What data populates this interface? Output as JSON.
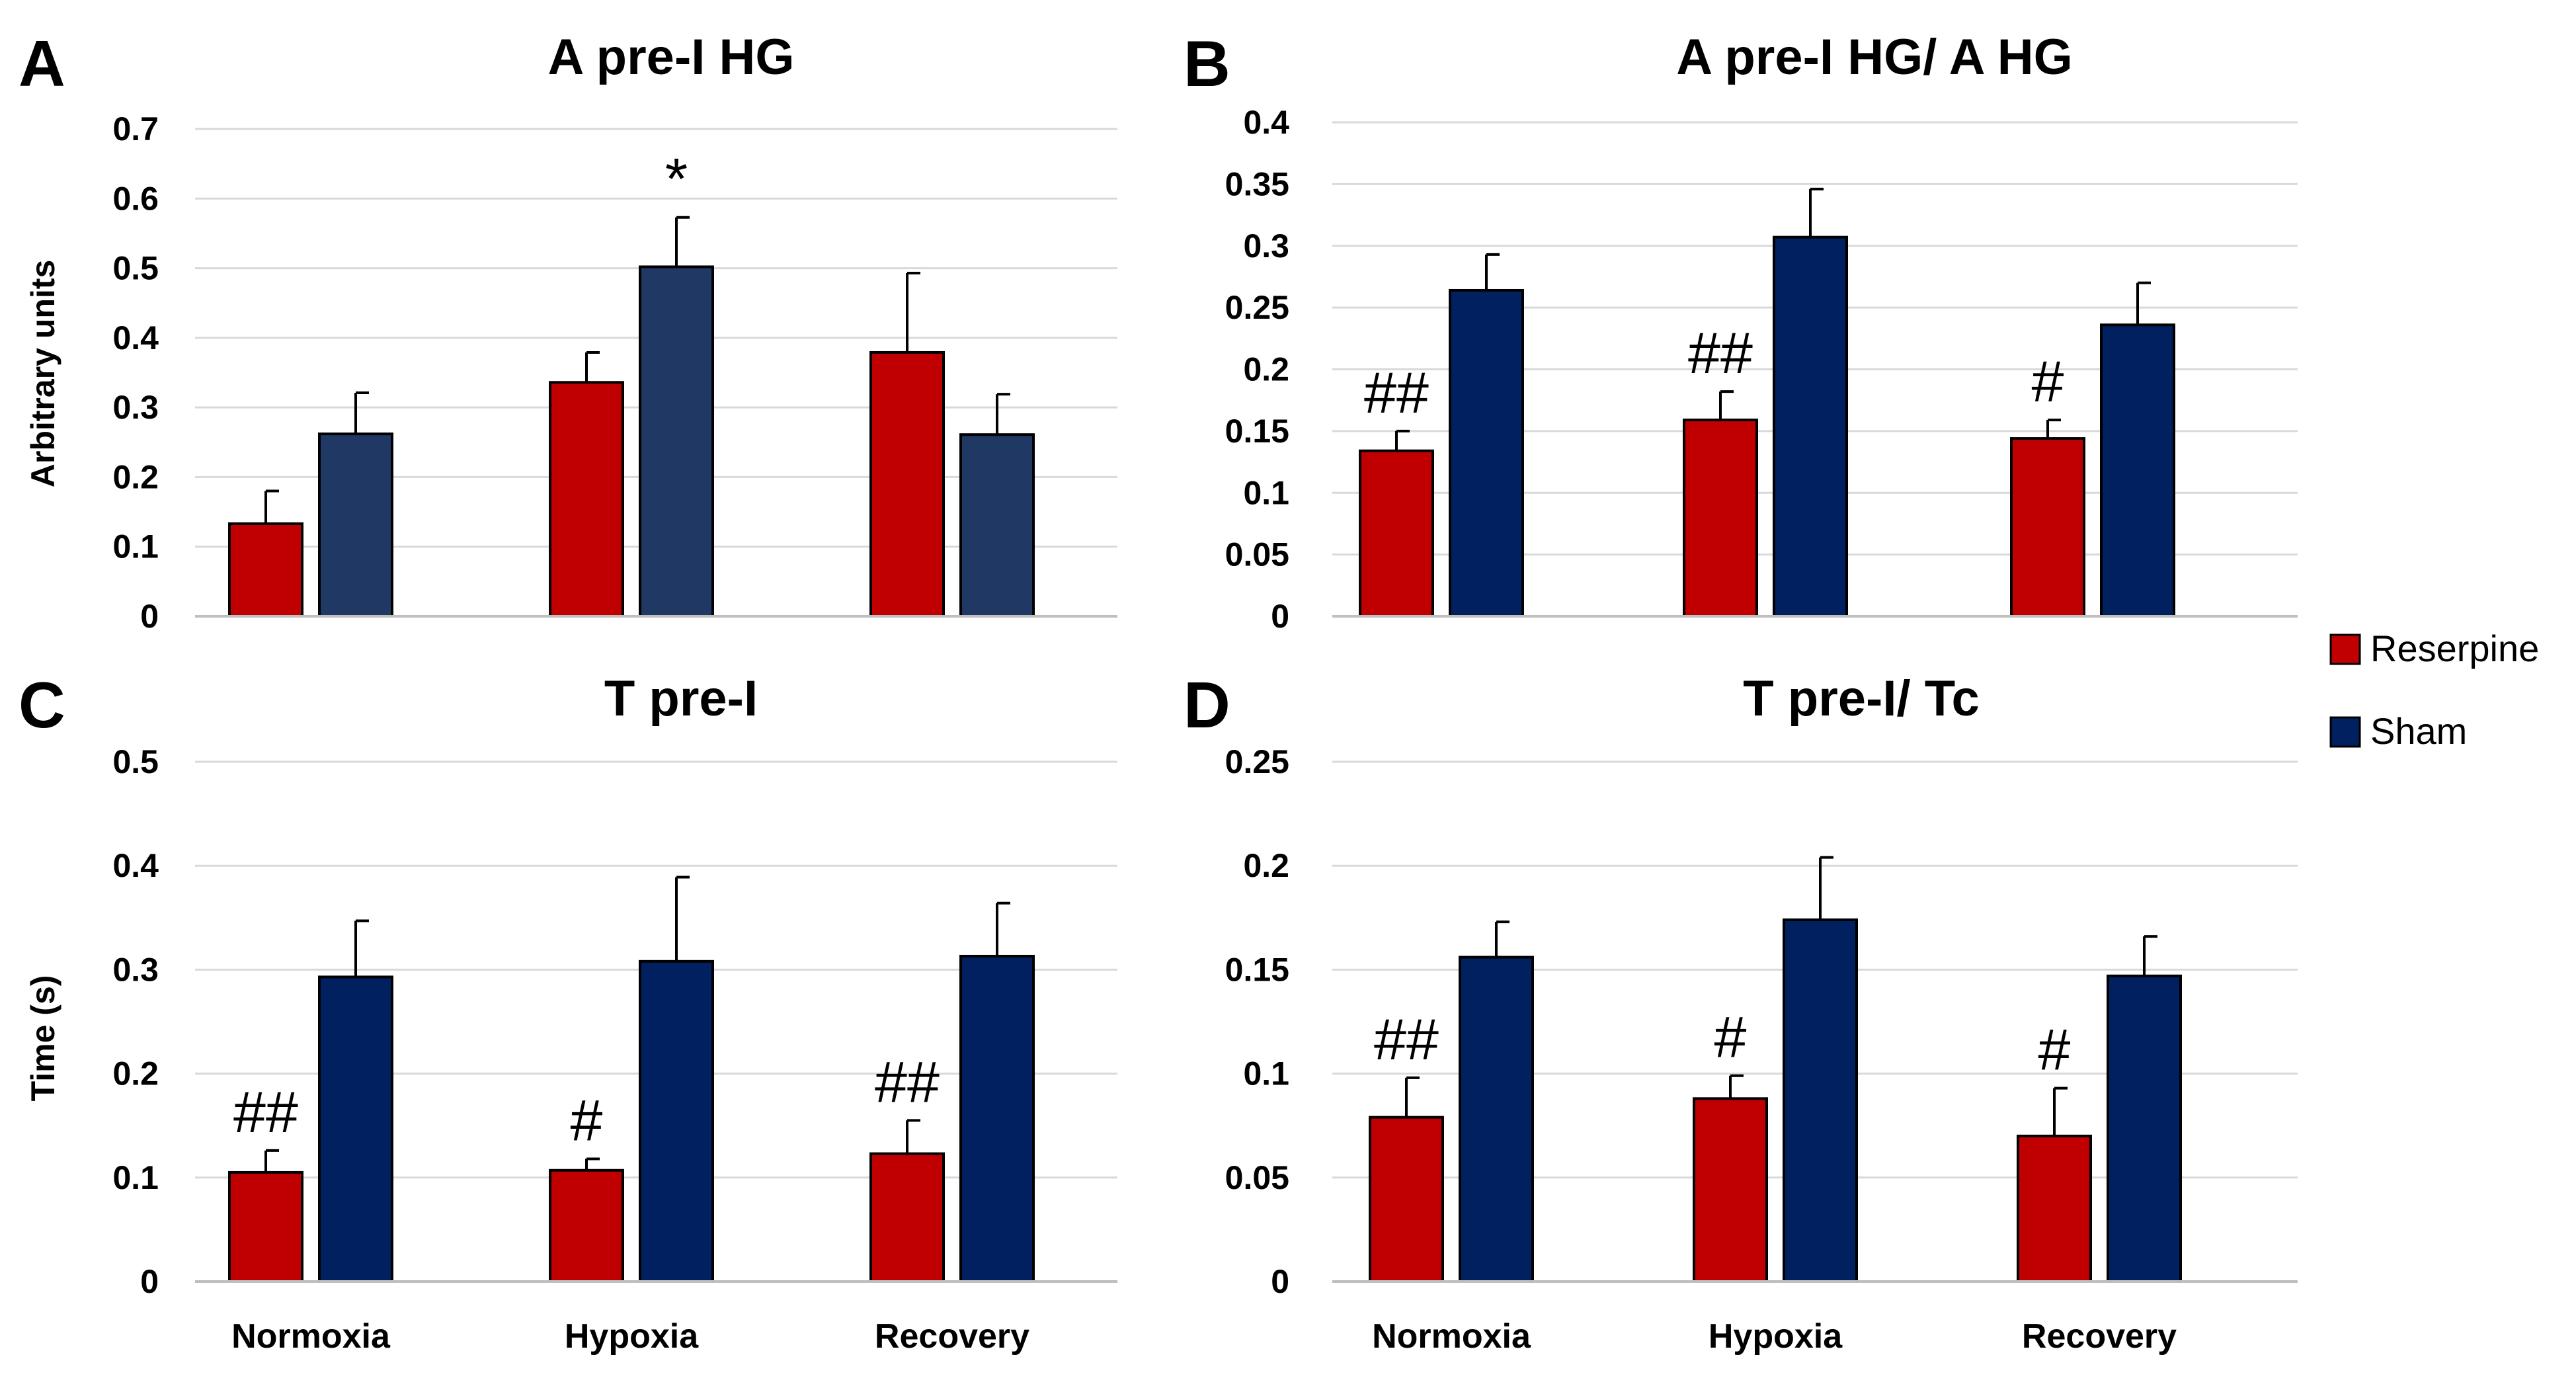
{
  "colors": {
    "reserpine": "#C00000",
    "sham": "#002060",
    "sham_panel_a": "#1F3864",
    "grid": "#D9D9D9",
    "axis": "#BFBFBF",
    "text": "#000000"
  },
  "legend": {
    "items": [
      {
        "label": "Reserpine",
        "color": "#C00000"
      },
      {
        "label": "Sham",
        "color": "#002060"
      }
    ]
  },
  "chart_data": [
    {
      "type": "bar",
      "panel": "A",
      "title": "A pre-I HG",
      "ylabel": "Arbitrary units",
      "xlabel": "",
      "categories": [
        "Normoxia",
        "Hypoxia",
        "Recovery"
      ],
      "ylim": [
        0,
        0.7
      ],
      "ticks": [
        "0",
        "0.1",
        "0.2",
        "0.3",
        "0.4",
        "0.5",
        "0.6",
        "0.7"
      ],
      "tick_values": [
        0,
        0.1,
        0.2,
        0.3,
        0.4,
        0.5,
        0.6,
        0.7
      ],
      "show_category_labels": false,
      "series": [
        {
          "name": "Reserpine",
          "values": [
            0.133,
            0.336,
            0.379
          ],
          "errors": [
            0.047,
            0.043,
            0.114
          ],
          "annotations": [
            "",
            "",
            ""
          ]
        },
        {
          "name": "Sham",
          "values": [
            0.262,
            0.502,
            0.261
          ],
          "errors": [
            0.059,
            0.071,
            0.058
          ],
          "annotations": [
            "",
            "*",
            ""
          ]
        }
      ]
    },
    {
      "type": "bar",
      "panel": "B",
      "title": "A pre-I HG/ A HG",
      "ylabel": "",
      "xlabel": "",
      "categories": [
        "Normoxia",
        "Hypoxia",
        "Recovery"
      ],
      "ylim": [
        0,
        0.4
      ],
      "ticks": [
        "0",
        "0.05",
        "0.1",
        "0.15",
        "0.2",
        "0.25",
        "0.3",
        "0.35",
        "0.4"
      ],
      "tick_values": [
        0,
        0.05,
        0.1,
        0.15,
        0.2,
        0.25,
        0.3,
        0.35,
        0.4
      ],
      "show_category_labels": false,
      "series": [
        {
          "name": "Reserpine",
          "values": [
            0.134,
            0.159,
            0.144
          ],
          "errors": [
            0.016,
            0.023,
            0.015
          ],
          "annotations": [
            "##",
            "##",
            "#"
          ]
        },
        {
          "name": "Sham",
          "values": [
            0.264,
            0.307,
            0.236
          ],
          "errors": [
            0.029,
            0.039,
            0.034
          ],
          "annotations": [
            "",
            "",
            ""
          ]
        }
      ]
    },
    {
      "type": "bar",
      "panel": "C",
      "title": "T pre-I",
      "ylabel": "Time (s)",
      "xlabel": "",
      "categories": [
        "Normoxia",
        "Hypoxia",
        "Recovery"
      ],
      "ylim": [
        0,
        0.5
      ],
      "ticks": [
        "0",
        "0.1",
        "0.2",
        "0.3",
        "0.4",
        "0.5"
      ],
      "tick_values": [
        0,
        0.1,
        0.2,
        0.3,
        0.4,
        0.5
      ],
      "show_category_labels": true,
      "series": [
        {
          "name": "Reserpine",
          "values": [
            0.105,
            0.107,
            0.123
          ],
          "errors": [
            0.021,
            0.011,
            0.032
          ],
          "annotations": [
            "##",
            "#",
            "##"
          ]
        },
        {
          "name": "Sham",
          "values": [
            0.293,
            0.308,
            0.313
          ],
          "errors": [
            0.054,
            0.081,
            0.051
          ],
          "annotations": [
            "",
            "",
            ""
          ]
        }
      ]
    },
    {
      "type": "bar",
      "panel": "D",
      "title": "T pre-I/ Tc",
      "ylabel": "",
      "xlabel": "",
      "categories": [
        "Normoxia",
        "Hypoxia",
        "Recovery"
      ],
      "ylim": [
        0,
        0.25
      ],
      "ticks": [
        "0",
        "0.05",
        "0.1",
        "0.15",
        "0.2",
        "0.25"
      ],
      "tick_values": [
        0,
        0.05,
        0.1,
        0.15,
        0.2,
        0.25
      ],
      "show_category_labels": true,
      "series": [
        {
          "name": "Reserpine",
          "values": [
            0.079,
            0.088,
            0.07
          ],
          "errors": [
            0.019,
            0.011,
            0.023
          ],
          "annotations": [
            "##",
            "#",
            "#"
          ]
        },
        {
          "name": "Sham",
          "values": [
            0.156,
            0.174,
            0.147
          ],
          "errors": [
            0.017,
            0.03,
            0.019
          ],
          "annotations": [
            "",
            "",
            ""
          ]
        }
      ]
    }
  ]
}
